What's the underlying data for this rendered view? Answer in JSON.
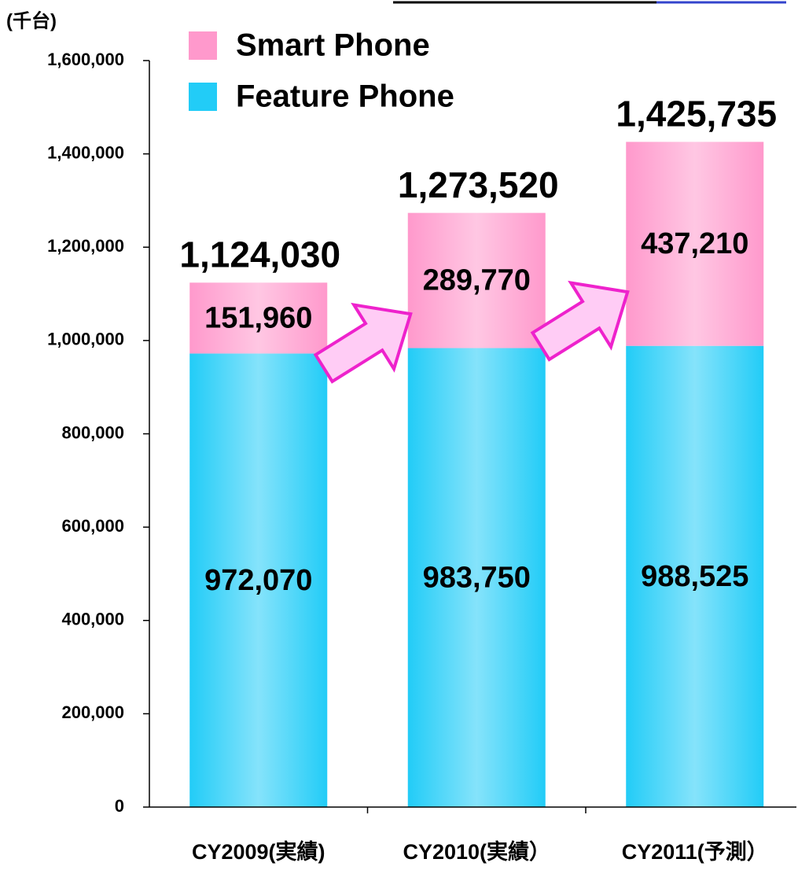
{
  "chart_data": {
    "type": "stacked_bar",
    "y_axis_label": "(千台)",
    "categories": [
      "CY2009(実績)",
      "CY2010(実績）",
      "CY2011(予測）"
    ],
    "series": [
      {
        "name": "Feature Phone",
        "color": "#22ccf7",
        "values": [
          972070,
          983750,
          988525
        ],
        "value_labels": [
          "972,070",
          "983,750",
          "988,525"
        ]
      },
      {
        "name": "Smart Phone",
        "color": "#ff99cc",
        "values": [
          151960,
          289770,
          437210
        ],
        "value_labels": [
          "151,960",
          "289,770",
          "437,210"
        ]
      }
    ],
    "totals": [
      1124030,
      1273520,
      1425735
    ],
    "total_labels": [
      "1,124,030",
      "1,273,520",
      "1,425,735"
    ],
    "ylim": [
      0,
      1600000
    ],
    "yticks": [
      0,
      {
        "value": 200000,
        "label": "200,000"
      },
      {
        "value": 400000,
        "label": "400,000"
      },
      {
        "value": 600000,
        "label": "600,000"
      },
      {
        "value": 800000,
        "label": "800,000"
      },
      {
        "value": 1000000,
        "label": "1,000,000"
      },
      {
        "value": 1200000,
        "label": "1,200,000"
      },
      {
        "value": 1400000,
        "label": "1,400,000"
      },
      {
        "value": 1600000,
        "label": "1,600,000"
      }
    ],
    "legend": "top-left"
  }
}
